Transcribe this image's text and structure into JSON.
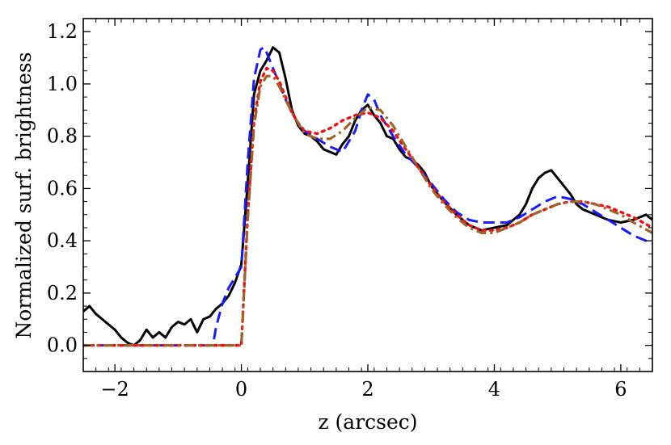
{
  "chart_data": {
    "type": "line",
    "xlabel": "z (arcsec)",
    "ylabel": "Normalized surf. brightness",
    "xlim": [
      -2.5,
      6.5
    ],
    "ylim": [
      -0.1,
      1.25
    ],
    "x_ticks": [
      -2,
      0,
      2,
      4,
      6
    ],
    "x_tick_labels": [
      "−2",
      "0",
      "2",
      "4",
      "6"
    ],
    "y_ticks": [
      0.0,
      0.2,
      0.4,
      0.6,
      0.8,
      1.0,
      1.2
    ],
    "y_tick_labels": [
      "0.0",
      "0.2",
      "0.4",
      "0.6",
      "0.8",
      "1.0",
      "1.2"
    ],
    "grid": false,
    "series": [
      {
        "style": "solid",
        "color": "#000000",
        "x": [
          -2.5,
          -2.4,
          -2.3,
          -2.2,
          -2.1,
          -2.0,
          -1.9,
          -1.8,
          -1.7,
          -1.6,
          -1.5,
          -1.4,
          -1.3,
          -1.2,
          -1.1,
          -1.0,
          -0.9,
          -0.8,
          -0.7,
          -0.6,
          -0.5,
          -0.4,
          -0.3,
          -0.2,
          -0.1,
          0.0,
          0.1,
          0.2,
          0.3,
          0.4,
          0.5,
          0.6,
          0.7,
          0.8,
          0.9,
          1.0,
          1.1,
          1.2,
          1.3,
          1.4,
          1.5,
          1.6,
          1.7,
          1.8,
          1.9,
          2.0,
          2.1,
          2.2,
          2.3,
          2.4,
          2.5,
          2.6,
          2.7,
          2.8,
          2.9,
          3.0,
          3.2,
          3.4,
          3.6,
          3.8,
          4.0,
          4.2,
          4.4,
          4.5,
          4.6,
          4.7,
          4.8,
          4.9,
          5.0,
          5.1,
          5.2,
          5.3,
          5.4,
          5.6,
          5.8,
          6.0,
          6.2,
          6.4,
          6.5
        ],
        "y": [
          0.13,
          0.15,
          0.12,
          0.1,
          0.08,
          0.06,
          0.03,
          0.01,
          0.0,
          0.02,
          0.06,
          0.03,
          0.05,
          0.03,
          0.07,
          0.09,
          0.08,
          0.1,
          0.05,
          0.1,
          0.11,
          0.14,
          0.16,
          0.19,
          0.24,
          0.31,
          0.62,
          0.96,
          1.05,
          1.09,
          1.14,
          1.12,
          1.02,
          0.9,
          0.84,
          0.81,
          0.8,
          0.78,
          0.75,
          0.74,
          0.73,
          0.77,
          0.8,
          0.86,
          0.9,
          0.92,
          0.88,
          0.85,
          0.8,
          0.79,
          0.75,
          0.72,
          0.71,
          0.69,
          0.66,
          0.61,
          0.55,
          0.5,
          0.46,
          0.44,
          0.45,
          0.46,
          0.5,
          0.54,
          0.6,
          0.64,
          0.66,
          0.67,
          0.64,
          0.61,
          0.58,
          0.54,
          0.52,
          0.5,
          0.48,
          0.47,
          0.48,
          0.5,
          0.48
        ]
      },
      {
        "style": "dashed",
        "color": "#1a1aff",
        "x": [
          -2.5,
          -0.45,
          -0.4,
          -0.3,
          -0.2,
          -0.1,
          0.0,
          0.1,
          0.2,
          0.3,
          0.35,
          0.4,
          0.5,
          0.6,
          0.7,
          0.8,
          0.9,
          1.0,
          1.2,
          1.4,
          1.6,
          1.8,
          1.9,
          2.0,
          2.1,
          2.2,
          2.4,
          2.6,
          2.8,
          3.0,
          3.2,
          3.4,
          3.6,
          3.8,
          4.0,
          4.2,
          4.4,
          4.6,
          4.8,
          5.0,
          5.2,
          5.4,
          5.6,
          5.8,
          6.0,
          6.2,
          6.5
        ],
        "y": [
          0.0,
          0.0,
          0.07,
          0.16,
          0.22,
          0.26,
          0.3,
          0.7,
          1.02,
          1.13,
          1.14,
          1.12,
          1.06,
          1.0,
          0.94,
          0.89,
          0.85,
          0.82,
          0.79,
          0.76,
          0.74,
          0.82,
          0.9,
          0.96,
          0.94,
          0.88,
          0.8,
          0.73,
          0.68,
          0.62,
          0.56,
          0.51,
          0.48,
          0.47,
          0.47,
          0.47,
          0.49,
          0.52,
          0.55,
          0.57,
          0.56,
          0.54,
          0.51,
          0.48,
          0.45,
          0.42,
          0.39
        ]
      },
      {
        "style": "dotted",
        "color": "#ee1111",
        "x": [
          -2.5,
          0.0,
          0.1,
          0.2,
          0.3,
          0.4,
          0.5,
          0.6,
          0.7,
          0.8,
          0.9,
          1.0,
          1.2,
          1.4,
          1.6,
          1.8,
          2.0,
          2.2,
          2.4,
          2.6,
          2.8,
          3.0,
          3.2,
          3.4,
          3.6,
          3.8,
          4.0,
          4.2,
          4.4,
          4.6,
          4.8,
          5.0,
          5.2,
          5.4,
          5.6,
          5.8,
          6.0,
          6.2,
          6.5
        ],
        "y": [
          0.0,
          0.0,
          0.5,
          0.86,
          1.01,
          1.06,
          1.05,
          1.01,
          0.95,
          0.89,
          0.85,
          0.82,
          0.81,
          0.83,
          0.86,
          0.88,
          0.89,
          0.87,
          0.82,
          0.75,
          0.68,
          0.61,
          0.55,
          0.5,
          0.46,
          0.44,
          0.44,
          0.45,
          0.47,
          0.5,
          0.52,
          0.54,
          0.55,
          0.55,
          0.54,
          0.53,
          0.51,
          0.49,
          0.45
        ]
      },
      {
        "style": "dashdot",
        "color": "#a0642a",
        "x": [
          -2.5,
          0.0,
          0.1,
          0.2,
          0.3,
          0.4,
          0.5,
          0.6,
          0.7,
          0.8,
          0.9,
          1.0,
          1.2,
          1.4,
          1.6,
          1.8,
          2.0,
          2.2,
          2.4,
          2.6,
          2.8,
          3.0,
          3.2,
          3.4,
          3.6,
          3.8,
          4.0,
          4.2,
          4.4,
          4.6,
          4.8,
          5.0,
          5.2,
          5.4,
          5.6,
          5.8,
          6.0,
          6.2,
          6.5
        ],
        "y": [
          0.0,
          0.0,
          0.48,
          0.84,
          0.99,
          1.03,
          1.03,
          0.99,
          0.94,
          0.89,
          0.85,
          0.81,
          0.79,
          0.79,
          0.82,
          0.87,
          0.91,
          0.9,
          0.84,
          0.76,
          0.68,
          0.6,
          0.54,
          0.49,
          0.45,
          0.43,
          0.43,
          0.45,
          0.47,
          0.5,
          0.52,
          0.54,
          0.55,
          0.55,
          0.54,
          0.52,
          0.5,
          0.47,
          0.43
        ]
      }
    ]
  }
}
